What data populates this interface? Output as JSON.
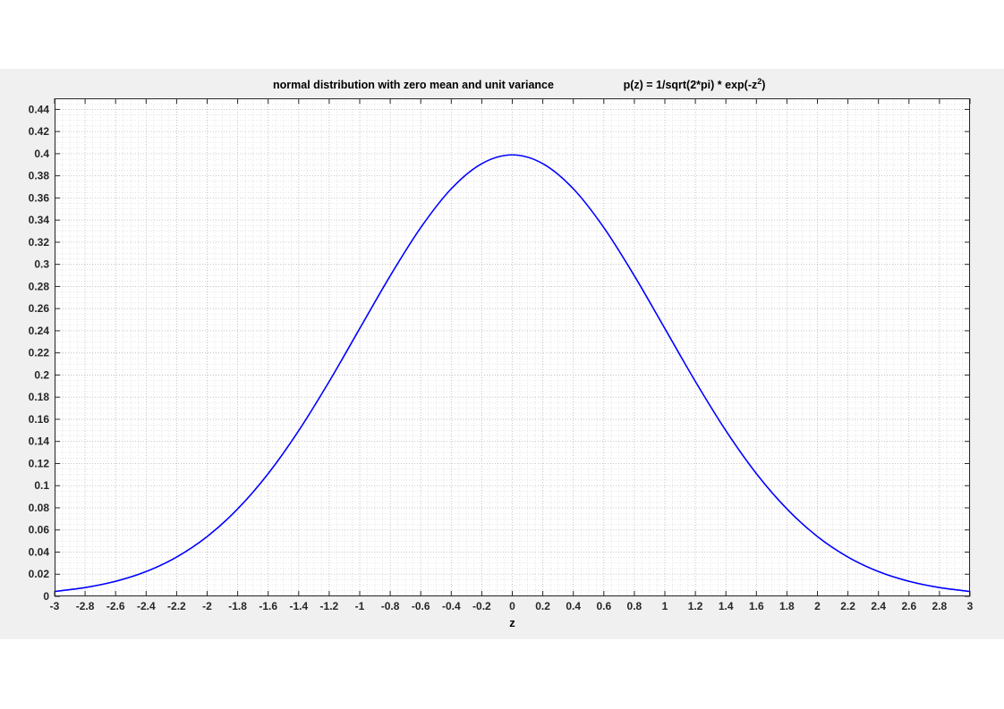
{
  "chart_data": {
    "type": "line",
    "title": "normal distribution with zero mean and unit variance",
    "formula": {
      "prefix": "p(z) = 1/sqrt(2*pi) * exp(-z",
      "superscript": "2",
      "suffix": ")"
    },
    "xlabel": "z",
    "ylabel": "",
    "xlim": [
      -3,
      3
    ],
    "ylim": [
      0,
      0.45
    ],
    "grid": true,
    "x_ticks": [
      -3,
      -2.8,
      -2.6,
      -2.4,
      -2.2,
      -2,
      -1.8,
      -1.6,
      -1.4,
      -1.2,
      -1,
      -0.8,
      -0.6,
      -0.4,
      -0.2,
      0,
      0.2,
      0.4,
      0.6,
      0.8,
      1,
      1.2,
      1.4,
      1.6,
      1.8,
      2,
      2.2,
      2.4,
      2.6,
      2.8,
      3
    ],
    "y_ticks": [
      0,
      0.02,
      0.04,
      0.06,
      0.08,
      0.1,
      0.12,
      0.14,
      0.16,
      0.18,
      0.2,
      0.22,
      0.24,
      0.26,
      0.28,
      0.3,
      0.32,
      0.34,
      0.36,
      0.38,
      0.4,
      0.42,
      0.44
    ],
    "series": [
      {
        "color": "#0000ff",
        "x": [
          -3,
          -2.8,
          -2.6,
          -2.4,
          -2.2,
          -2,
          -1.8,
          -1.6,
          -1.4,
          -1.2,
          -1,
          -0.8,
          -0.6,
          -0.4,
          -0.2,
          0,
          0.2,
          0.4,
          0.6,
          0.8,
          1,
          1.2,
          1.4,
          1.6,
          1.8,
          2,
          2.2,
          2.4,
          2.6,
          2.8,
          3
        ],
        "y": [
          0.0044,
          0.0079,
          0.0136,
          0.0224,
          0.0355,
          0.054,
          0.079,
          0.1109,
          0.1497,
          0.1942,
          0.242,
          0.2897,
          0.3332,
          0.3683,
          0.391,
          0.3989,
          0.391,
          0.3683,
          0.3332,
          0.2897,
          0.242,
          0.1942,
          0.1497,
          0.1109,
          0.079,
          0.054,
          0.0355,
          0.0224,
          0.0136,
          0.0079,
          0.0044
        ]
      }
    ]
  }
}
